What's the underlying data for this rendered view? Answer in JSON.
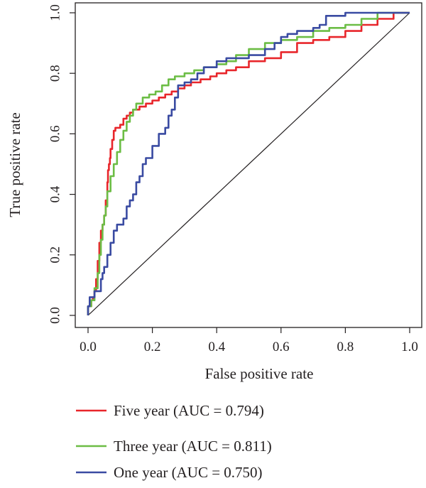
{
  "chart_data": {
    "type": "line",
    "xlabel": "False positive rate",
    "ylabel": "True positive rate",
    "xlim": [
      0,
      1
    ],
    "ylim": [
      0,
      1
    ],
    "x_ticks": [
      "0.0",
      "0.2",
      "0.4",
      "0.6",
      "0.8",
      "1.0"
    ],
    "y_ticks": [
      "0.0",
      "0.2",
      "0.4",
      "0.6",
      "0.8",
      "1.0"
    ],
    "grid": false,
    "legend_position": "bottom",
    "diagonal": true,
    "series": [
      {
        "name": "Five year (AUC = 0.794)",
        "color": "#e8262b",
        "points": [
          [
            0,
            0
          ],
          [
            0.01,
            0.03
          ],
          [
            0.015,
            0.05
          ],
          [
            0.02,
            0.06
          ],
          [
            0.025,
            0.08
          ],
          [
            0.03,
            0.12
          ],
          [
            0.035,
            0.18
          ],
          [
            0.04,
            0.24
          ],
          [
            0.045,
            0.28
          ],
          [
            0.05,
            0.3
          ],
          [
            0.055,
            0.33
          ],
          [
            0.06,
            0.38
          ],
          [
            0.062,
            0.44
          ],
          [
            0.065,
            0.48
          ],
          [
            0.068,
            0.5
          ],
          [
            0.07,
            0.52
          ],
          [
            0.075,
            0.55
          ],
          [
            0.08,
            0.58
          ],
          [
            0.085,
            0.61
          ],
          [
            0.09,
            0.62
          ],
          [
            0.1,
            0.62
          ],
          [
            0.11,
            0.63
          ],
          [
            0.12,
            0.65
          ],
          [
            0.13,
            0.66
          ],
          [
            0.14,
            0.67
          ],
          [
            0.16,
            0.68
          ],
          [
            0.18,
            0.69
          ],
          [
            0.2,
            0.7
          ],
          [
            0.22,
            0.71
          ],
          [
            0.24,
            0.72
          ],
          [
            0.26,
            0.73
          ],
          [
            0.28,
            0.74
          ],
          [
            0.3,
            0.75
          ],
          [
            0.32,
            0.76
          ],
          [
            0.35,
            0.77
          ],
          [
            0.38,
            0.78
          ],
          [
            0.4,
            0.79
          ],
          [
            0.43,
            0.8
          ],
          [
            0.46,
            0.81
          ],
          [
            0.5,
            0.82
          ],
          [
            0.55,
            0.84
          ],
          [
            0.6,
            0.85
          ],
          [
            0.65,
            0.87
          ],
          [
            0.7,
            0.9
          ],
          [
            0.75,
            0.91
          ],
          [
            0.8,
            0.92
          ],
          [
            0.85,
            0.94
          ],
          [
            0.9,
            0.96
          ],
          [
            0.95,
            0.98
          ],
          [
            1,
            1
          ]
        ]
      },
      {
        "name": "Three year (AUC = 0.811)",
        "color": "#6cbd45",
        "points": [
          [
            0,
            0
          ],
          [
            0.01,
            0.03
          ],
          [
            0.02,
            0.05
          ],
          [
            0.03,
            0.09
          ],
          [
            0.035,
            0.14
          ],
          [
            0.04,
            0.2
          ],
          [
            0.045,
            0.25
          ],
          [
            0.05,
            0.3
          ],
          [
            0.055,
            0.33
          ],
          [
            0.06,
            0.36
          ],
          [
            0.07,
            0.41
          ],
          [
            0.08,
            0.46
          ],
          [
            0.09,
            0.5
          ],
          [
            0.1,
            0.54
          ],
          [
            0.11,
            0.58
          ],
          [
            0.12,
            0.61
          ],
          [
            0.13,
            0.64
          ],
          [
            0.14,
            0.66
          ],
          [
            0.15,
            0.68
          ],
          [
            0.17,
            0.7
          ],
          [
            0.19,
            0.72
          ],
          [
            0.21,
            0.73
          ],
          [
            0.23,
            0.74
          ],
          [
            0.25,
            0.76
          ],
          [
            0.27,
            0.78
          ],
          [
            0.3,
            0.79
          ],
          [
            0.33,
            0.8
          ],
          [
            0.36,
            0.81
          ],
          [
            0.4,
            0.82
          ],
          [
            0.43,
            0.83
          ],
          [
            0.46,
            0.84
          ],
          [
            0.5,
            0.86
          ],
          [
            0.55,
            0.88
          ],
          [
            0.6,
            0.9
          ],
          [
            0.65,
            0.91
          ],
          [
            0.7,
            0.92
          ],
          [
            0.75,
            0.94
          ],
          [
            0.8,
            0.95
          ],
          [
            0.85,
            0.96
          ],
          [
            0.9,
            0.98
          ],
          [
            0.95,
            1
          ],
          [
            1,
            1
          ]
        ]
      },
      {
        "name": "One year (AUC = 0.750)",
        "color": "#3a4ba2",
        "points": [
          [
            0,
            0
          ],
          [
            0.005,
            0.03
          ],
          [
            0.01,
            0.06
          ],
          [
            0.02,
            0.06
          ],
          [
            0.03,
            0.08
          ],
          [
            0.04,
            0.08
          ],
          [
            0.045,
            0.12
          ],
          [
            0.05,
            0.14
          ],
          [
            0.06,
            0.16
          ],
          [
            0.07,
            0.2
          ],
          [
            0.08,
            0.24
          ],
          [
            0.09,
            0.28
          ],
          [
            0.1,
            0.3
          ],
          [
            0.11,
            0.3
          ],
          [
            0.12,
            0.32
          ],
          [
            0.13,
            0.36
          ],
          [
            0.14,
            0.38
          ],
          [
            0.15,
            0.4
          ],
          [
            0.16,
            0.44
          ],
          [
            0.17,
            0.46
          ],
          [
            0.18,
            0.5
          ],
          [
            0.2,
            0.52
          ],
          [
            0.22,
            0.56
          ],
          [
            0.24,
            0.6
          ],
          [
            0.25,
            0.62
          ],
          [
            0.26,
            0.66
          ],
          [
            0.27,
            0.68
          ],
          [
            0.28,
            0.72
          ],
          [
            0.3,
            0.76
          ],
          [
            0.32,
            0.77
          ],
          [
            0.34,
            0.78
          ],
          [
            0.36,
            0.8
          ],
          [
            0.38,
            0.82
          ],
          [
            0.4,
            0.82
          ],
          [
            0.43,
            0.84
          ],
          [
            0.46,
            0.85
          ],
          [
            0.5,
            0.85
          ],
          [
            0.55,
            0.86
          ],
          [
            0.58,
            0.88
          ],
          [
            0.6,
            0.9
          ],
          [
            0.62,
            0.92
          ],
          [
            0.65,
            0.93
          ],
          [
            0.7,
            0.94
          ],
          [
            0.72,
            0.95
          ],
          [
            0.74,
            0.96
          ],
          [
            0.75,
            0.99
          ],
          [
            0.8,
            0.99
          ],
          [
            0.85,
            1
          ],
          [
            0.9,
            1
          ],
          [
            0.95,
            1
          ],
          [
            1,
            1
          ]
        ]
      }
    ]
  }
}
